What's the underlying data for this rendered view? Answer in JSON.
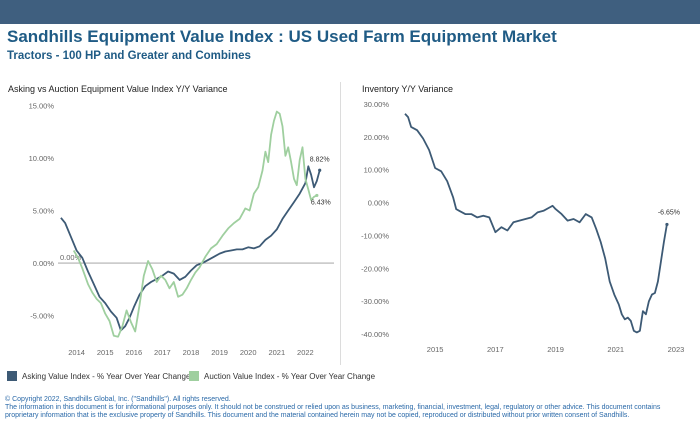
{
  "header": {
    "title": "Sandhills Equipment Value Index : US Used Farm Equipment Market",
    "subtitle": "Tractors - 100 HP and Greater and Combines"
  },
  "colors": {
    "bar": "#3f5f7f",
    "asking": "#3d5a75",
    "auction": "#9fcf9f",
    "title": "#1f5b85"
  },
  "legend": {
    "asking": "Asking Value Index - % Year Over Year Change",
    "auction": "Auction Value Index - % Year Over Year Change"
  },
  "footer": {
    "copyright": "© Copyright 2022, Sandhills Global, Inc. (\"Sandhills\"). All rights reserved.",
    "disclaimer": "The information in this document is for informational purposes only.  It should not be construed or relied upon as business, marketing, financial, investment, legal, regulatory or other advice. This document contains proprietary information that is the exclusive property of Sandhills. This document and the material contained herein may not be copied, reproduced or distributed without prior written consent of Sandhills."
  },
  "chart_data": [
    {
      "type": "line",
      "title": "Asking vs Auction Equipment Value Index Y/Y Variance",
      "ylim": [
        -7.5,
        15.5
      ],
      "xlim": [
        2013.35,
        2023.0
      ],
      "yticks": [
        "15.00%",
        "10.00%",
        "5.00%",
        "0.00%",
        "-5.00%"
      ],
      "ytick_values": [
        15,
        10,
        5,
        0,
        -5
      ],
      "xticks": [
        "2014",
        "2015",
        "2016",
        "2017",
        "2018",
        "2019",
        "2020",
        "2021",
        "2022"
      ],
      "xtick_values": [
        2014,
        2015,
        2016,
        2017,
        2018,
        2019,
        2020,
        2021,
        2022
      ],
      "reference_line": {
        "y": 0,
        "label": "0.00%"
      },
      "annotations": [
        "8.82%",
        "6.43%"
      ],
      "series": [
        {
          "name": "Asking Value Index - % Year Over Year Change",
          "points": [
            [
              2013.45,
              4.3
            ],
            [
              2013.6,
              3.8
            ],
            [
              2013.8,
              2.5
            ],
            [
              2014.0,
              1.2
            ],
            [
              2014.2,
              0.5
            ],
            [
              2014.4,
              -0.8
            ],
            [
              2014.6,
              -2.0
            ],
            [
              2014.8,
              -3.2
            ],
            [
              2015.0,
              -3.8
            ],
            [
              2015.2,
              -4.6
            ],
            [
              2015.4,
              -5.2
            ],
            [
              2015.55,
              -6.4
            ],
            [
              2015.7,
              -6.0
            ],
            [
              2015.85,
              -5.2
            ],
            [
              2016.0,
              -4.2
            ],
            [
              2016.2,
              -3.0
            ],
            [
              2016.4,
              -2.2
            ],
            [
              2016.6,
              -1.8
            ],
            [
              2016.8,
              -1.5
            ],
            [
              2017.0,
              -1.2
            ],
            [
              2017.2,
              -0.8
            ],
            [
              2017.4,
              -1.0
            ],
            [
              2017.6,
              -1.6
            ],
            [
              2017.8,
              -1.3
            ],
            [
              2018.0,
              -0.7
            ],
            [
              2018.2,
              -0.2
            ],
            [
              2018.4,
              0.0
            ],
            [
              2018.6,
              0.3
            ],
            [
              2018.8,
              0.6
            ],
            [
              2019.0,
              0.9
            ],
            [
              2019.2,
              1.1
            ],
            [
              2019.4,
              1.2
            ],
            [
              2019.6,
              1.3
            ],
            [
              2019.8,
              1.3
            ],
            [
              2020.0,
              1.5
            ],
            [
              2020.2,
              1.4
            ],
            [
              2020.4,
              1.6
            ],
            [
              2020.6,
              2.2
            ],
            [
              2020.8,
              2.6
            ],
            [
              2021.0,
              3.2
            ],
            [
              2021.2,
              4.2
            ],
            [
              2021.4,
              5.0
            ],
            [
              2021.6,
              5.8
            ],
            [
              2021.8,
              6.6
            ],
            [
              2022.0,
              7.6
            ],
            [
              2022.1,
              9.2
            ],
            [
              2022.2,
              8.4
            ],
            [
              2022.3,
              7.2
            ],
            [
              2022.4,
              7.8
            ],
            [
              2022.5,
              8.82
            ]
          ]
        },
        {
          "name": "Auction Value Index - % Year Over Year Change",
          "points": [
            [
              2013.9,
              1.2
            ],
            [
              2014.05,
              0.5
            ],
            [
              2014.2,
              -0.5
            ],
            [
              2014.4,
              -2.0
            ],
            [
              2014.55,
              -2.8
            ],
            [
              2014.7,
              -3.4
            ],
            [
              2014.85,
              -3.8
            ],
            [
              2015.0,
              -4.8
            ],
            [
              2015.15,
              -5.5
            ],
            [
              2015.3,
              -6.9
            ],
            [
              2015.45,
              -7.0
            ],
            [
              2015.6,
              -6.0
            ],
            [
              2015.75,
              -4.5
            ],
            [
              2015.9,
              -5.6
            ],
            [
              2016.05,
              -6.5
            ],
            [
              2016.2,
              -4.0
            ],
            [
              2016.35,
              -1.2
            ],
            [
              2016.5,
              0.2
            ],
            [
              2016.65,
              -0.6
            ],
            [
              2016.8,
              -1.8
            ],
            [
              2016.95,
              -1.2
            ],
            [
              2017.1,
              -1.6
            ],
            [
              2017.25,
              -2.4
            ],
            [
              2017.4,
              -1.8
            ],
            [
              2017.55,
              -3.2
            ],
            [
              2017.7,
              -3.0
            ],
            [
              2017.85,
              -2.4
            ],
            [
              2018.0,
              -1.6
            ],
            [
              2018.15,
              -0.9
            ],
            [
              2018.3,
              -0.4
            ],
            [
              2018.5,
              0.6
            ],
            [
              2018.7,
              1.4
            ],
            [
              2018.9,
              1.8
            ],
            [
              2019.1,
              2.6
            ],
            [
              2019.3,
              3.3
            ],
            [
              2019.5,
              3.8
            ],
            [
              2019.7,
              4.2
            ],
            [
              2019.9,
              5.2
            ],
            [
              2020.05,
              5.0
            ],
            [
              2020.2,
              6.6
            ],
            [
              2020.35,
              7.2
            ],
            [
              2020.5,
              8.8
            ],
            [
              2020.6,
              10.6
            ],
            [
              2020.7,
              9.6
            ],
            [
              2020.8,
              12.2
            ],
            [
              2020.9,
              13.5
            ],
            [
              2021.0,
              14.4
            ],
            [
              2021.1,
              14.2
            ],
            [
              2021.2,
              13.0
            ],
            [
              2021.3,
              10.2
            ],
            [
              2021.4,
              11.0
            ],
            [
              2021.5,
              9.6
            ],
            [
              2021.6,
              8.0
            ],
            [
              2021.7,
              7.4
            ],
            [
              2021.8,
              9.8
            ],
            [
              2021.9,
              11.0
            ],
            [
              2022.0,
              8.0
            ],
            [
              2022.1,
              7.0
            ],
            [
              2022.2,
              6.0
            ],
            [
              2022.3,
              6.3
            ],
            [
              2022.4,
              6.43
            ]
          ]
        }
      ]
    },
    {
      "type": "line",
      "title": "Inventory Y/Y Variance",
      "ylim": [
        -41.5,
        31.5
      ],
      "xlim": [
        2013.6,
        2023.2
      ],
      "yticks": [
        "30.00%",
        "20.00%",
        "10.00%",
        "0.00%",
        "-10.00%",
        "-20.00%",
        "-30.00%",
        "-40.00%"
      ],
      "ytick_values": [
        30,
        20,
        10,
        0,
        -10,
        -20,
        -30,
        -40
      ],
      "xticks": [
        "2015",
        "2017",
        "2019",
        "2021",
        "2023"
      ],
      "xtick_values": [
        2015,
        2017,
        2019,
        2021,
        2023
      ],
      "annotations": [
        "-6.65%"
      ],
      "series": [
        {
          "name": "Inventory Y/Y Variance",
          "points": [
            [
              2014.0,
              27.0
            ],
            [
              2014.1,
              26.0
            ],
            [
              2014.2,
              23.0
            ],
            [
              2014.4,
              22.0
            ],
            [
              2014.6,
              19.5
            ],
            [
              2014.8,
              16.0
            ],
            [
              2015.0,
              10.5
            ],
            [
              2015.2,
              9.5
            ],
            [
              2015.4,
              6.5
            ],
            [
              2015.6,
              1.5
            ],
            [
              2015.7,
              -2.0
            ],
            [
              2015.8,
              -2.5
            ],
            [
              2016.0,
              -3.5
            ],
            [
              2016.2,
              -3.5
            ],
            [
              2016.4,
              -4.5
            ],
            [
              2016.6,
              -4.0
            ],
            [
              2016.8,
              -4.5
            ],
            [
              2017.0,
              -9.0
            ],
            [
              2017.2,
              -7.5
            ],
            [
              2017.4,
              -8.5
            ],
            [
              2017.6,
              -6.0
            ],
            [
              2017.8,
              -5.5
            ],
            [
              2018.0,
              -5.0
            ],
            [
              2018.2,
              -4.5
            ],
            [
              2018.4,
              -3.0
            ],
            [
              2018.6,
              -2.5
            ],
            [
              2018.8,
              -1.5
            ],
            [
              2018.9,
              -1.0
            ],
            [
              2019.0,
              -2.0
            ],
            [
              2019.2,
              -3.5
            ],
            [
              2019.4,
              -5.5
            ],
            [
              2019.6,
              -5.0
            ],
            [
              2019.8,
              -6.0
            ],
            [
              2020.0,
              -3.5
            ],
            [
              2020.2,
              -4.5
            ],
            [
              2020.35,
              -8.0
            ],
            [
              2020.5,
              -12.0
            ],
            [
              2020.65,
              -17.0
            ],
            [
              2020.8,
              -24.0
            ],
            [
              2020.95,
              -28.0
            ],
            [
              2021.1,
              -31.0
            ],
            [
              2021.2,
              -34.0
            ],
            [
              2021.3,
              -35.5
            ],
            [
              2021.4,
              -35.0
            ],
            [
              2021.5,
              -36.0
            ],
            [
              2021.6,
              -39.0
            ],
            [
              2021.7,
              -39.5
            ],
            [
              2021.8,
              -39.0
            ],
            [
              2021.9,
              -33.0
            ],
            [
              2022.0,
              -34.0
            ],
            [
              2022.1,
              -30.0
            ],
            [
              2022.2,
              -28.0
            ],
            [
              2022.3,
              -27.5
            ],
            [
              2022.4,
              -24.0
            ],
            [
              2022.5,
              -18.0
            ],
            [
              2022.6,
              -12.0
            ],
            [
              2022.7,
              -6.65
            ]
          ]
        }
      ]
    }
  ]
}
